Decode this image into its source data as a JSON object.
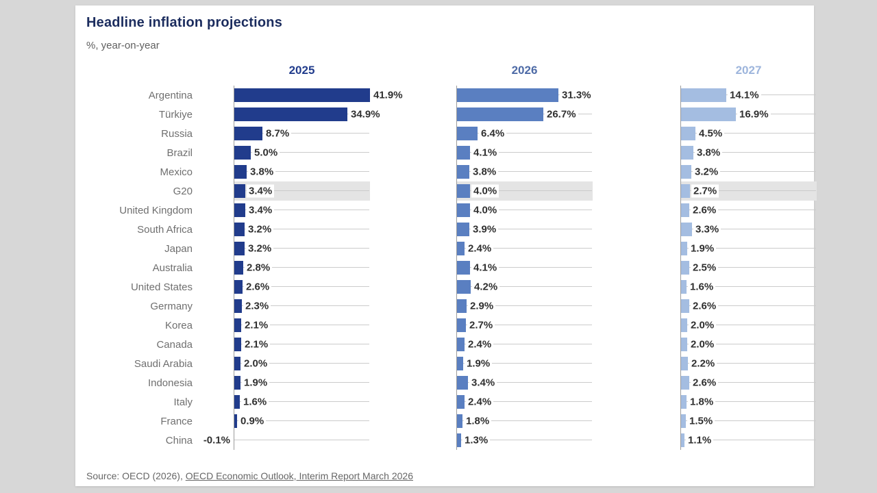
{
  "title": "Headline inflation projections",
  "subtitle": "%, year-on-year",
  "source": {
    "prefix": "Source: OECD (2026), ",
    "link_text": "OECD Economic Outlook, Interim Report March 2026"
  },
  "colors": {
    "title_text": "#1b2c5e",
    "bar_2025": "#213c8c",
    "bar_2026": "#5a7fc1",
    "bar_2027": "#a4bde1",
    "header_2025": "#213c8c",
    "header_2026": "#4d6aa6",
    "header_2027": "#9db5dc",
    "highlight_band": "#e4e4e4",
    "track_line": "#cbcbcb",
    "axis_line": "#9b9b9b",
    "country_label": "#6f6f6f",
    "value_label": "#303030"
  },
  "chart_data": {
    "type": "bar",
    "orientation": "horizontal",
    "value_suffix": "%",
    "xlim": [
      0,
      42.2
    ],
    "grid": false,
    "highlight_category": "G20",
    "categories": [
      "Argentina",
      "Türkiye",
      "Russia",
      "Brazil",
      "Mexico",
      "G20",
      "United Kingdom",
      "South Africa",
      "Japan",
      "Australia",
      "United States",
      "Germany",
      "Korea",
      "Canada",
      "Saudi Arabia",
      "Indonesia",
      "Italy",
      "France",
      "China"
    ],
    "series": [
      {
        "name": "2025",
        "values": [
          41.9,
          34.9,
          8.7,
          5.0,
          3.8,
          3.4,
          3.4,
          3.2,
          3.2,
          2.8,
          2.6,
          2.3,
          2.1,
          2.1,
          2.0,
          1.9,
          1.6,
          0.9,
          -0.1
        ]
      },
      {
        "name": "2026",
        "values": [
          31.3,
          26.7,
          6.4,
          4.1,
          3.8,
          4.0,
          4.0,
          3.9,
          2.4,
          4.1,
          4.2,
          2.9,
          2.7,
          2.4,
          1.9,
          3.4,
          2.4,
          1.8,
          1.3
        ]
      },
      {
        "name": "2027",
        "values": [
          14.1,
          16.9,
          4.5,
          3.8,
          3.2,
          2.7,
          2.6,
          3.3,
          1.9,
          2.5,
          1.6,
          2.6,
          2.0,
          2.0,
          2.2,
          2.6,
          1.8,
          1.5,
          1.1
        ]
      }
    ]
  }
}
